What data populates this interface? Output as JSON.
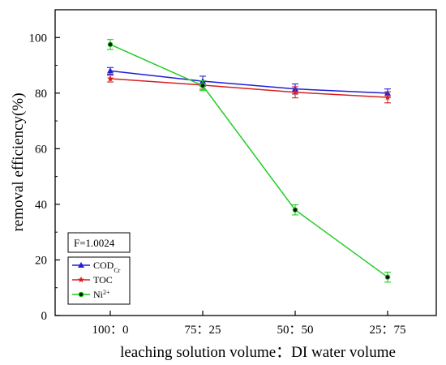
{
  "chart_data": {
    "type": "line",
    "xlabel": "leaching solution volume：DI water volume",
    "ylabel": "removal efficiency(%)",
    "categories": [
      "100：0",
      "75：25",
      "50：50",
      "25：75"
    ],
    "ylim": [
      0,
      110
    ],
    "yticks": [
      0,
      20,
      40,
      60,
      80,
      100
    ],
    "grid": false,
    "legend_position": "lower-left",
    "annotation": "F=1.0024",
    "series": [
      {
        "name": "COD",
        "name_sub": "Cr",
        "name_sup": "",
        "color": "#1f1fd6",
        "marker": "triangle",
        "values": [
          88.0,
          84.3,
          81.5,
          80.0
        ],
        "errors": [
          1.2,
          1.8,
          1.8,
          1.5
        ]
      },
      {
        "name": "TOC",
        "name_sub": "",
        "name_sup": "",
        "color": "#d62020",
        "marker": "star",
        "values": [
          85.2,
          82.9,
          80.3,
          78.5
        ],
        "errors": [
          1.2,
          1.5,
          2.0,
          2.0
        ]
      },
      {
        "name": "Ni",
        "name_sub": "",
        "name_sup": "2+",
        "color": "#22cc22",
        "marker": "circle",
        "values": [
          97.5,
          82.7,
          38.0,
          13.8
        ],
        "errors": [
          1.8,
          1.8,
          1.8,
          1.8
        ]
      }
    ]
  }
}
